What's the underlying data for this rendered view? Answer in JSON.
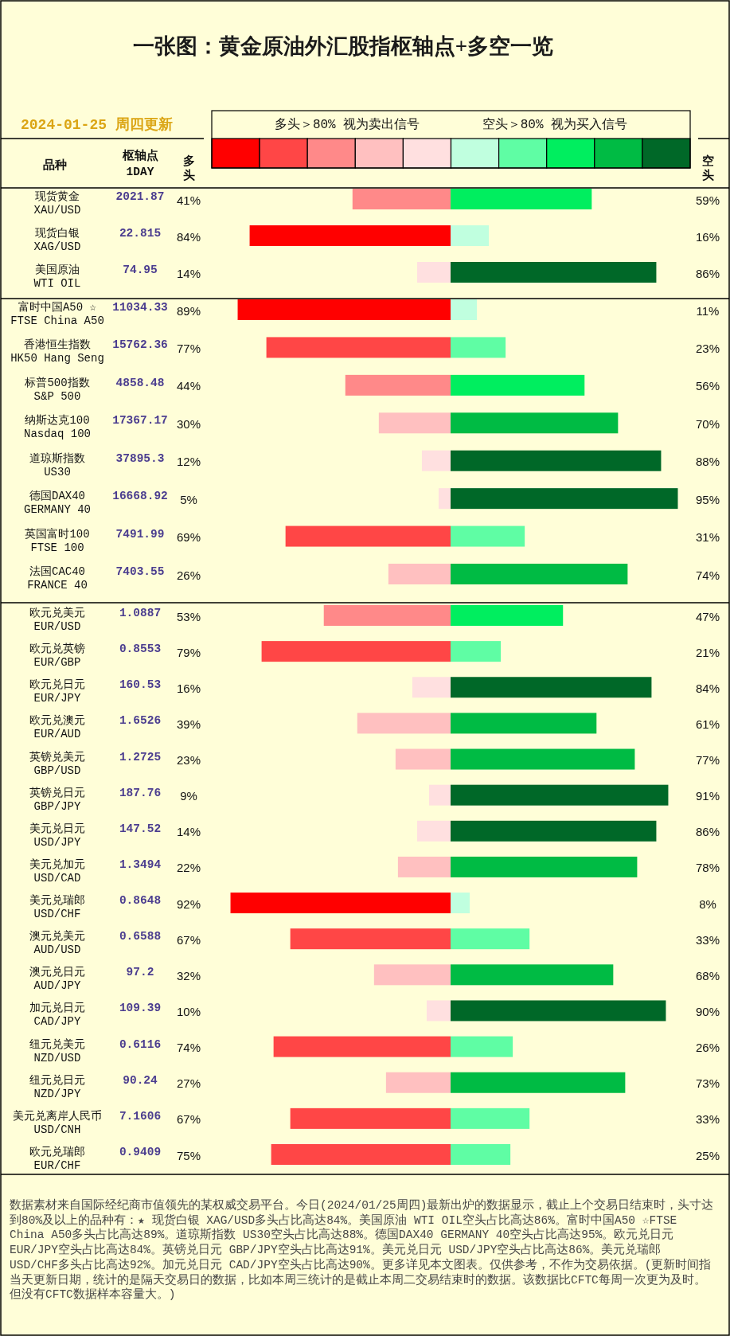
{
  "chart_data": [
    {
      "type": "bar",
      "orientation": "horizontal",
      "title": "一张图：黄金原油外汇股指枢轴点+多空一览",
      "subtitle": "2024-01-25 周四更新",
      "ylabel": "品种",
      "categories": [
        "现货黄金\nXAU/USD",
        "现货白银\nXAG/USD",
        "美国原油\nWTI OIL"
      ],
      "values": [
        41,
        84,
        14
      ],
      "colors": [
        "#ff8989",
        "#ff0000",
        "#ffe0e0"
      ],
      "value_labels": [
        "41%",
        "84%",
        "14%"
      ],
      "annotations": [
        "多头＞80% 视为卖出信号",
        "枢轴点\n1DAY",
        "多头",
        "2021.87",
        "22.815",
        "74.95"
      ]
    },
    {
      "type": "bar",
      "orientation": "horizontal",
      "categories": [
        null,
        null,
        null
      ],
      "values": [
        59,
        16,
        86
      ],
      "colors": [
        "#00ee5f",
        "#c0ffdf",
        "#006828"
      ],
      "value_labels": [
        "59%",
        "16%",
        "86%"
      ],
      "annotations": [
        "空头＞80% 视为买入信号",
        "空头"
      ]
    },
    {
      "type": "bar",
      "orientation": "horizontal",
      "categories": [
        "富时中国A50 ☆\nFTSE China A50",
        "香港恒生指数\nHK50 Hang Seng",
        "标普500指数\nS&P 500",
        "纳斯达克100\nNasdaq 100",
        "道琼斯指数\nUS30",
        "德国DAX40\nGERMANY 40",
        "英国富时100\nFTSE 100",
        "法国CAC40\nFRANCE 40"
      ],
      "values": [
        89,
        77,
        44,
        30,
        12,
        5,
        69,
        26
      ],
      "colors": [
        "#ff0000",
        "#ff4646",
        "#ff8989",
        "#ffc0c0",
        "#ffe0e0",
        "#ffe0e0",
        "#ff4646",
        "#ffc0c0"
      ],
      "value_labels": [
        "89%",
        "77%",
        "44%",
        "30%",
        "12%",
        "5%",
        "69%",
        "26%"
      ],
      "annotations": [
        "11034.33",
        "15762.36",
        "4858.48",
        "17367.17",
        "37895.3",
        "16668.92",
        "7491.99",
        "7403.55"
      ]
    },
    {
      "type": "bar",
      "orientation": "horizontal",
      "categories": [
        null,
        null,
        null,
        null,
        null,
        null,
        null,
        null
      ],
      "values": [
        11,
        23,
        56,
        70,
        88,
        95,
        31,
        74
      ],
      "colors": [
        "#c0ffdf",
        "#5ffda4",
        "#00ee5f",
        "#00bb44",
        "#006828",
        "#006828",
        "#5ffda4",
        "#00bb44"
      ],
      "value_labels": [
        "11%",
        "23%",
        "56%",
        "70%",
        "88%",
        "95%",
        "31%",
        "74%"
      ]
    },
    {
      "type": "bar",
      "orientation": "horizontal",
      "categories": [
        "欧元兑美元\nEUR/USD",
        "欧元兑英镑\nEUR/GBP",
        "欧元兑日元\nEUR/JPY",
        "欧元兑澳元\nEUR/AUD",
        "英镑兑美元\nGBP/USD",
        "英镑兑日元\nGBP/JPY",
        "美元兑日元\nUSD/JPY",
        "美元兑加元\nUSD/CAD",
        "美元兑瑞郎\nUSD/CHF",
        "澳元兑美元\nAUD/USD",
        "澳元兑日元\nAUD/JPY",
        "加元兑日元\nCAD/JPY",
        "纽元兑美元\nNZD/USD",
        "纽元兑日元\nNZD/JPY",
        "美元兑离岸人民币\nUSD/CNH",
        "欧元兑瑞郎\nEUR/CHF"
      ],
      "values": [
        53,
        79,
        16,
        39,
        23,
        9,
        14,
        22,
        92,
        67,
        32,
        10,
        74,
        27,
        67,
        75
      ],
      "colors": [
        "#ff8989",
        "#ff4646",
        "#ffe0e0",
        "#ffc0c0",
        "#ffc0c0",
        "#ffe0e0",
        "#ffe0e0",
        "#ffc0c0",
        "#ff0000",
        "#ff4646",
        "#ffc0c0",
        "#ffe0e0",
        "#ff4646",
        "#ffc0c0",
        "#ff4646",
        "#ff4646"
      ],
      "value_labels": [
        "53%",
        "79%",
        "16%",
        "39%",
        "23%",
        "9%",
        "14%",
        "22%",
        "92%",
        "67%",
        "32%",
        "10%",
        "74%",
        "27%",
        "67%",
        "75%"
      ],
      "annotations": [
        "1.0887",
        "0.8553",
        "160.53",
        "1.6526",
        "1.2725",
        "187.76",
        "147.52",
        "1.3494",
        "0.8648",
        "0.6588",
        "97.2",
        "109.39",
        "0.6116",
        "90.24",
        "7.1606",
        "0.9409"
      ]
    },
    {
      "type": "bar",
      "orientation": "horizontal",
      "categories": [
        null,
        null,
        null,
        null,
        null,
        null,
        null,
        null,
        null,
        null,
        null,
        null,
        null,
        null,
        null,
        null
      ],
      "values": [
        47,
        21,
        84,
        61,
        77,
        91,
        86,
        78,
        8,
        33,
        68,
        90,
        26,
        73,
        33,
        25
      ],
      "colors": [
        "#00ee5f",
        "#5ffda4",
        "#006828",
        "#00bb44",
        "#00bb44",
        "#006828",
        "#006828",
        "#00bb44",
        "#c0ffdf",
        "#5ffda4",
        "#00bb44",
        "#006828",
        "#5ffda4",
        "#00bb44",
        "#5ffda4",
        "#5ffda4"
      ],
      "value_labels": [
        "47%",
        "21%",
        "84%",
        "61%",
        "77%",
        "91%",
        "86%",
        "78%",
        "8%",
        "33%",
        "68%",
        "90%",
        "26%",
        "73%",
        "33%",
        "25%"
      ],
      "annotations": [
        "数据素材来自国际经纪商市值领先的某权威交易平台。今日(2024/01/25周四)最新出炉的数据显示，截止上个交易日结束时，头寸达到80%及以上的品种有：★ 现货白银 XAG/USD多头占比高达84%。美国原油 WTI OIL空头占比高达86%。富时中国A50 ☆FTSE China A50多头占比高达89%。道琼斯指数 US30空头占比高达88%。德国DAX40 GERMANY 40空头占比高达95%。欧元兑日元 EUR/JPY空头占比高达84%。英镑兑日元 GBP/JPY空头占比高达91%。美元兑日元 USD/JPY空头占比高达86%。美元兑瑞郎 USD/CHF多头占比高达92%。加元兑日元 CAD/JPY空头占比高达90%。更多详见本文图表。仅供参考，不作为交易依据。(更新时间指当天更新日期，统计的是隔天交易日的数据，比如本周三统计的是截止本周二交易结束时的数据。该数据比CFTC每周一次更为及时。但没有CFTC数据样本容量大。)"
      ]
    }
  ]
}
